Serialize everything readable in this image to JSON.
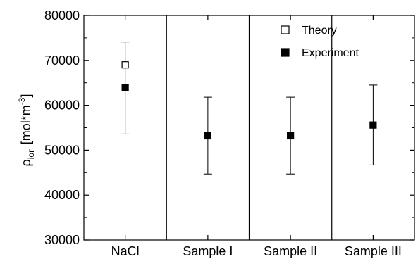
{
  "chart_data": {
    "type": "scatter",
    "xlabel": "",
    "ylabel_main": "ρ",
    "ylabel_sub": "ion",
    "ylabel_unit_pre": " [mol*m",
    "ylabel_sup": "-3",
    "ylabel_unit_post": "]",
    "ylim": [
      30000,
      80000
    ],
    "yticks": [
      30000,
      40000,
      50000,
      60000,
      70000,
      80000
    ],
    "categories": [
      "NaCl",
      "Sample I",
      "Sample II",
      "Sample III"
    ],
    "grid": false,
    "legend_position": "top-right",
    "series": [
      {
        "name": "Theory",
        "marker": "open-square",
        "points": [
          {
            "category": "NaCl",
            "y": 69000
          }
        ]
      },
      {
        "name": "Experiment",
        "marker": "filled-square",
        "points": [
          {
            "category": "NaCl",
            "y": 63900,
            "err_low": 53600,
            "err_high": 74100
          },
          {
            "category": "Sample I",
            "y": 53200,
            "err_low": 44700,
            "err_high": 61800
          },
          {
            "category": "Sample II",
            "y": 53200,
            "err_low": 44700,
            "err_high": 61800
          },
          {
            "category": "Sample III",
            "y": 55600,
            "err_low": 46700,
            "err_high": 64500
          }
        ]
      }
    ]
  }
}
